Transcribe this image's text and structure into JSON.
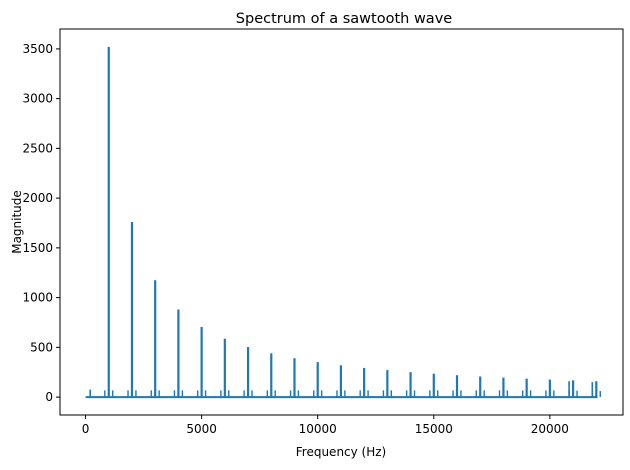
{
  "chart_data": {
    "type": "line",
    "title": "Spectrum of a sawtooth wave",
    "xlabel": "Frequency (Hz)",
    "ylabel": "Magnitude",
    "xlim": [
      -1100,
      23150
    ],
    "ylim": [
      -180,
      3700
    ],
    "xticks": [
      0,
      5000,
      10000,
      15000,
      20000
    ],
    "yticks": [
      0,
      500,
      1000,
      1500,
      2000,
      2500,
      3000,
      3500
    ],
    "grid": false,
    "color": "#1f77b4",
    "series": [
      {
        "peaks": [
          {
            "x": 1000,
            "y": 3520
          },
          {
            "x": 2000,
            "y": 1760
          },
          {
            "x": 3000,
            "y": 1175
          },
          {
            "x": 4000,
            "y": 880
          },
          {
            "x": 5000,
            "y": 705
          },
          {
            "x": 6000,
            "y": 587
          },
          {
            "x": 7000,
            "y": 503
          },
          {
            "x": 8000,
            "y": 440
          },
          {
            "x": 9000,
            "y": 391
          },
          {
            "x": 10000,
            "y": 352
          },
          {
            "x": 11000,
            "y": 320
          },
          {
            "x": 12000,
            "y": 293
          },
          {
            "x": 13000,
            "y": 271
          },
          {
            "x": 14000,
            "y": 251
          },
          {
            "x": 15000,
            "y": 235
          },
          {
            "x": 16000,
            "y": 220
          },
          {
            "x": 17000,
            "y": 207
          },
          {
            "x": 18000,
            "y": 196
          },
          {
            "x": 19000,
            "y": 185
          },
          {
            "x": 20000,
            "y": 176
          },
          {
            "x": 21000,
            "y": 168
          },
          {
            "x": 22000,
            "y": 160
          }
        ],
        "side_peaks": [
          {
            "x": 200,
            "y": 75
          },
          {
            "x": 21000,
            "y": 160
          },
          {
            "x": 22000,
            "y": 150
          }
        ]
      }
    ]
  }
}
